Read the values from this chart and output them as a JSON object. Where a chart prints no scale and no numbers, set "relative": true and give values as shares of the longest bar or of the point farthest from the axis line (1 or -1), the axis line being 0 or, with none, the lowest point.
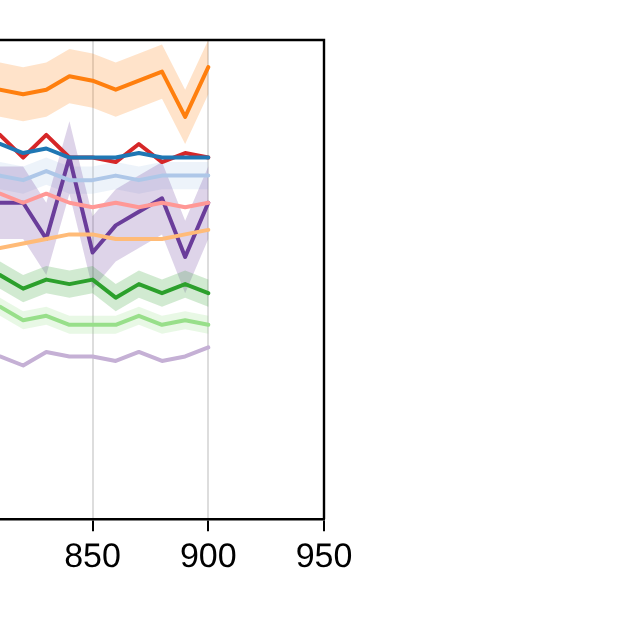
{
  "chart_data": {
    "type": "line",
    "relative": true,
    "x": [
      810,
      820,
      830,
      840,
      850,
      860,
      870,
      880,
      890,
      900
    ],
    "xlim": [
      810,
      950
    ],
    "xticks": [
      850,
      900,
      950
    ],
    "grid": "x",
    "legend": false,
    "marker": "none",
    "line_style": "solid",
    "series": [
      {
        "color": "#ff7f0e",
        "values": [
          0.95,
          0.94,
          0.95,
          0.98,
          0.97,
          0.95,
          0.97,
          0.99,
          0.89,
          1.0
        ],
        "lower": [
          0.89,
          0.88,
          0.89,
          0.92,
          0.91,
          0.89,
          0.91,
          0.93,
          0.83,
          0.94
        ],
        "upper": [
          1.01,
          1.0,
          1.01,
          1.04,
          1.03,
          1.01,
          1.03,
          1.05,
          0.95,
          1.06
        ]
      },
      {
        "color": "#1f77b4",
        "values": [
          0.83,
          0.81,
          0.82,
          0.8,
          0.8,
          0.8,
          0.81,
          0.8,
          0.8,
          0.8
        ]
      },
      {
        "color": "#d62728",
        "values": [
          0.85,
          0.8,
          0.85,
          0.8,
          0.8,
          0.79,
          0.83,
          0.79,
          0.81,
          0.8
        ]
      },
      {
        "color": "#aec7e8",
        "values": [
          0.76,
          0.75,
          0.77,
          0.75,
          0.75,
          0.76,
          0.75,
          0.76,
          0.76,
          0.76
        ],
        "lower": [
          0.73,
          0.72,
          0.74,
          0.72,
          0.72,
          0.73,
          0.72,
          0.73,
          0.73,
          0.73
        ],
        "upper": [
          0.79,
          0.78,
          0.8,
          0.78,
          0.78,
          0.79,
          0.78,
          0.79,
          0.79,
          0.79
        ]
      },
      {
        "color": "#ff9896",
        "values": [
          0.72,
          0.7,
          0.72,
          0.7,
          0.69,
          0.7,
          0.69,
          0.7,
          0.69,
          0.7
        ]
      },
      {
        "color": "#ffbb78",
        "values": [
          0.6,
          0.61,
          0.62,
          0.63,
          0.63,
          0.62,
          0.62,
          0.62,
          0.63,
          0.64
        ]
      },
      {
        "color": "#6a3d9a",
        "values": [
          0.7,
          0.7,
          0.62,
          0.8,
          0.59,
          0.65,
          0.68,
          0.71,
          0.58,
          0.7
        ],
        "lower": [
          0.62,
          0.62,
          0.54,
          0.72,
          0.51,
          0.57,
          0.6,
          0.63,
          0.5,
          0.62
        ],
        "upper": [
          0.78,
          0.78,
          0.7,
          0.88,
          0.67,
          0.73,
          0.76,
          0.79,
          0.66,
          0.78
        ]
      },
      {
        "color": "#2ca02c",
        "values": [
          0.54,
          0.51,
          0.53,
          0.52,
          0.53,
          0.49,
          0.52,
          0.5,
          0.52,
          0.5
        ],
        "lower": [
          0.51,
          0.48,
          0.5,
          0.49,
          0.5,
          0.46,
          0.49,
          0.47,
          0.49,
          0.47
        ],
        "upper": [
          0.57,
          0.54,
          0.56,
          0.55,
          0.56,
          0.52,
          0.55,
          0.53,
          0.55,
          0.53
        ]
      },
      {
        "color": "#98df8a",
        "values": [
          0.47,
          0.44,
          0.45,
          0.43,
          0.43,
          0.43,
          0.45,
          0.43,
          0.44,
          0.43
        ],
        "lower": [
          0.45,
          0.42,
          0.43,
          0.41,
          0.41,
          0.41,
          0.43,
          0.41,
          0.42,
          0.41
        ],
        "upper": [
          0.49,
          0.46,
          0.47,
          0.45,
          0.45,
          0.45,
          0.47,
          0.45,
          0.46,
          0.45
        ]
      },
      {
        "color": "#c5b0d5",
        "values": [
          0.36,
          0.34,
          0.37,
          0.36,
          0.36,
          0.35,
          0.37,
          0.35,
          0.36,
          0.38
        ]
      }
    ]
  }
}
